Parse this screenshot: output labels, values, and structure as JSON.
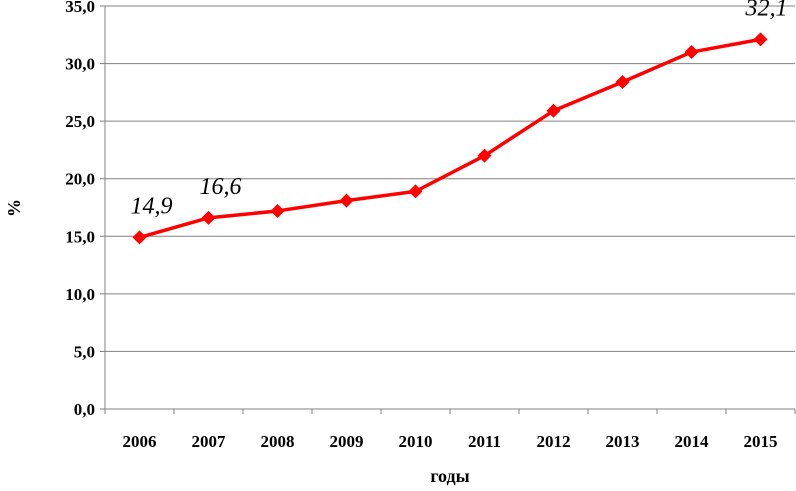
{
  "chart_data": {
    "type": "line",
    "categories": [
      "2006",
      "2007",
      "2008",
      "2009",
      "2010",
      "2011",
      "2012",
      "2013",
      "2014",
      "2015"
    ],
    "series": [
      {
        "values": [
          14.9,
          16.6,
          17.2,
          18.1,
          18.9,
          22.0,
          25.9,
          28.4,
          31.0,
          32.1
        ]
      }
    ],
    "data_labels": [
      {
        "index": 0,
        "text": "14,9"
      },
      {
        "index": 1,
        "text": "16,6"
      },
      {
        "index": 9,
        "text": "32,1"
      }
    ],
    "y_ticks": [
      "0,0",
      "5,0",
      "10,0",
      "15,0",
      "20,0",
      "25,0",
      "30,0",
      "35,0"
    ],
    "ylim": [
      0,
      35
    ],
    "ylabel": "%",
    "xlabel": "годы",
    "grid": true,
    "colors": {
      "line": "#ff0000",
      "marker": "#ff0000",
      "grid": "#808080",
      "axis": "#808080"
    }
  }
}
